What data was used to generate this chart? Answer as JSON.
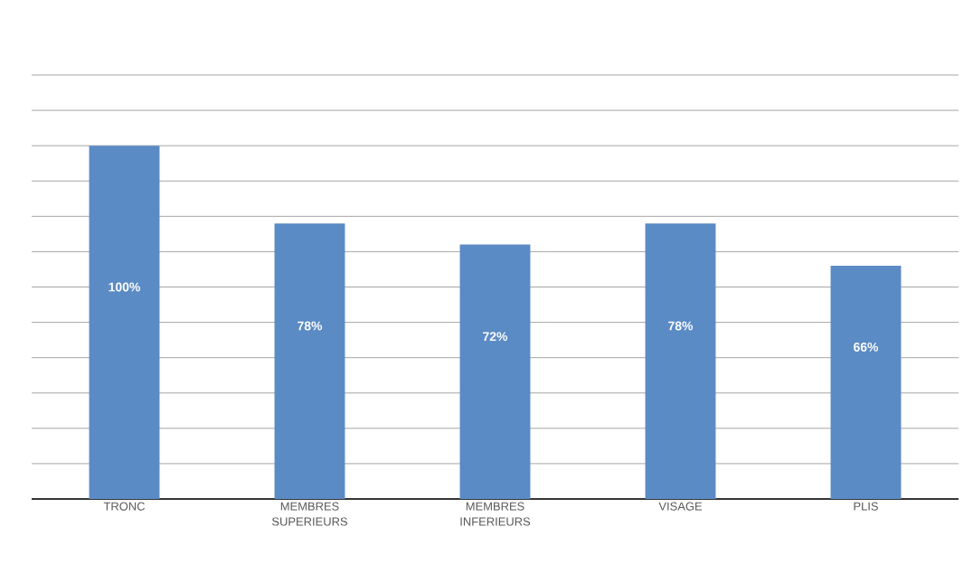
{
  "chart_data": {
    "type": "bar",
    "categories": [
      "TRONC",
      "MEMBRES SUPERIEURS",
      "MEMBRES INFERIEURS",
      "VISAGE",
      "PLIS"
    ],
    "values": [
      100,
      78,
      72,
      78,
      66
    ],
    "value_labels": [
      "100%",
      "78%",
      "72%",
      "78%",
      "66%"
    ],
    "color": "#5b8bc5",
    "tick_labels": "x",
    "grid": "y"
  }
}
